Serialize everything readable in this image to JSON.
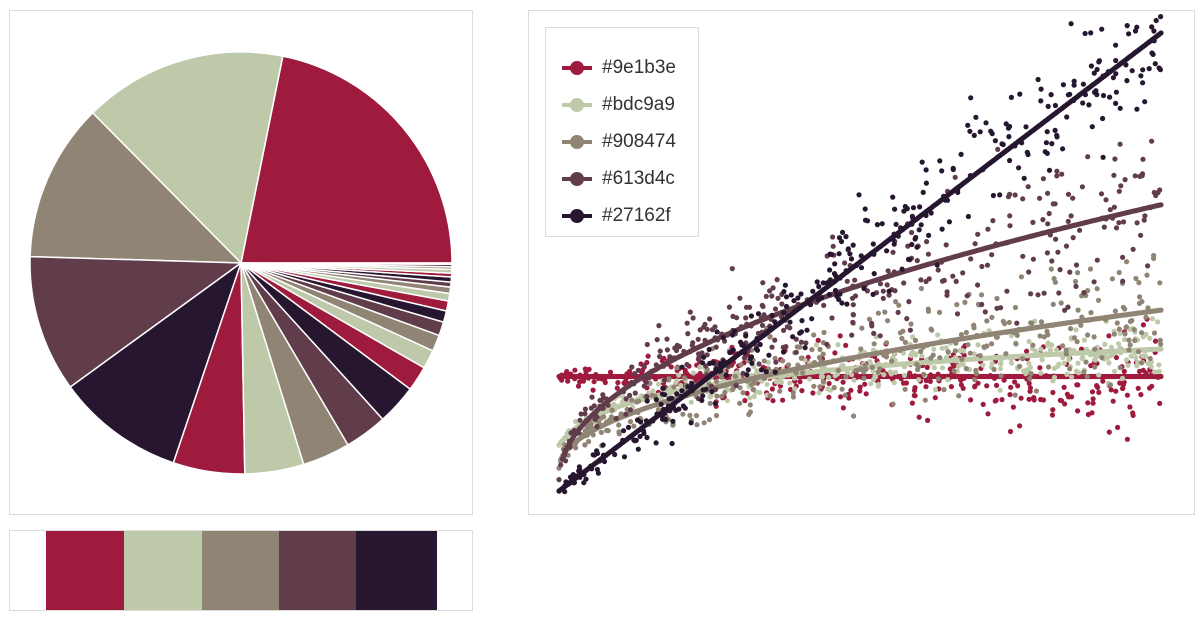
{
  "chart_data": [
    {
      "type": "pie",
      "colors": [
        "#9e1b3e",
        "#bdc9a9",
        "#908474",
        "#613d4c",
        "#27162f"
      ],
      "values": [
        22.7,
        16.2,
        12.6,
        10.9,
        10.2,
        5.7,
        4.7,
        3.8,
        3.4,
        3.2,
        2.0,
        1.5,
        1.3,
        1.1,
        0.9,
        0.8,
        0.6,
        0.5,
        0.4,
        0.4,
        0.3,
        0.3,
        0.2,
        0.2,
        0.1
      ]
    },
    {
      "type": "scatter",
      "legend_position": "top-left",
      "grid": false,
      "series": [
        {
          "name": "#9e1b3e",
          "color": "#9e1b3e",
          "trend": "flat",
          "start": 0.5,
          "end": 0.5,
          "spread_end": 0.2
        },
        {
          "name": "#bdc9a9",
          "color": "#bdc9a9",
          "trend": "log",
          "start": 0.2,
          "end": 0.62,
          "spread_end": 0.13
        },
        {
          "name": "#908474",
          "color": "#908474",
          "trend": "sqrt",
          "start": 0.1,
          "end": 0.79,
          "spread_end": 0.28
        },
        {
          "name": "#613d4c",
          "color": "#613d4c",
          "trend": "sqrt",
          "start": 0.05,
          "end": 1.25,
          "spread_end": 0.32
        },
        {
          "name": "#27162f",
          "color": "#27162f",
          "trend": "linear",
          "start": 0.0,
          "end": 2.0,
          "spread_end": 0.27
        }
      ]
    },
    {
      "type": "palette",
      "colors": [
        "#9e1b3e",
        "#bdc9a9",
        "#908474",
        "#613d4c",
        "#27162f"
      ]
    }
  ]
}
